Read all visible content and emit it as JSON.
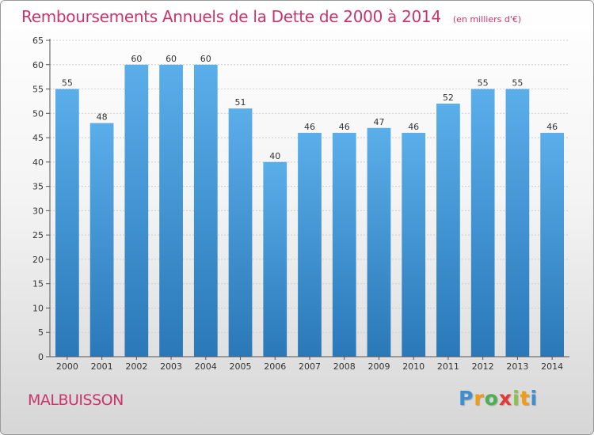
{
  "title": "Remboursements Annuels de la Dette de 2000 à 2014",
  "unit": "(en milliers d'€)",
  "commune": "MALBUISSON",
  "logo": {
    "letters": [
      "P",
      "r",
      "o",
      "x",
      "i",
      "t",
      "i"
    ],
    "colors": [
      "#3f8fd0",
      "#f39c12",
      "#4caf50",
      "#e53935",
      "#8bc34a",
      "#f39c12",
      "#3f8fd0"
    ]
  },
  "chart_data": {
    "type": "bar",
    "categories": [
      "2000",
      "2001",
      "2002",
      "2003",
      "2004",
      "2005",
      "2006",
      "2007",
      "2008",
      "2009",
      "2010",
      "2011",
      "2012",
      "2013",
      "2014"
    ],
    "values": [
      55,
      48,
      60,
      60,
      60,
      51,
      40,
      46,
      46,
      47,
      46,
      52,
      55,
      55,
      46
    ],
    "ylim": [
      0,
      65
    ],
    "yticks": [
      0,
      5,
      10,
      15,
      20,
      25,
      30,
      35,
      40,
      45,
      50,
      55,
      60,
      65
    ],
    "grid": true,
    "bar_color_top": "#5aaeea",
    "bar_color_bottom": "#2a78b8"
  }
}
